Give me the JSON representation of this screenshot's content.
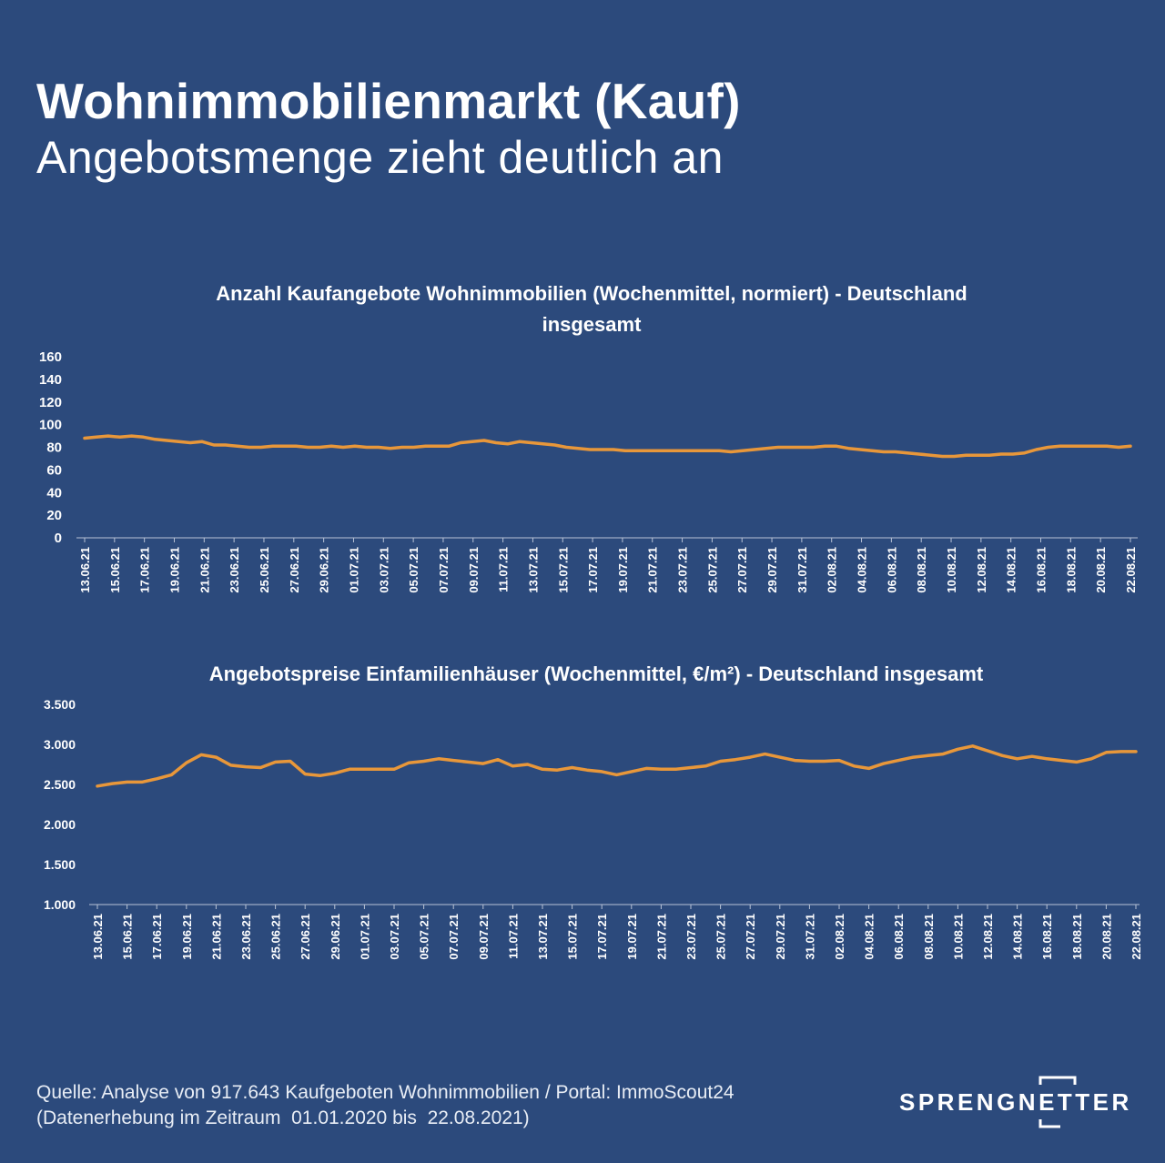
{
  "headline": "Wohnimmobilienmarkt (Kauf)",
  "subheadline": "Angebotsmenge zieht deutlich an",
  "line_color": "#e8973a",
  "background_color": "#2c4a7c",
  "footer": {
    "line1": "Quelle: Analyse von 917.643 Kaufgeboten Wohnimmobilien / Portal: ImmoScout24",
    "line2": "(Datenerhebung im Zeitraum  01.01.2020 bis  22.08.2021)"
  },
  "logo": {
    "text": "SPRENGNETTER"
  },
  "chart_data": [
    {
      "type": "line",
      "title": "Anzahl Kaufangebote Wohnimmobilien (Wochenmittel, normiert) - Deutschland insgesamt",
      "title_lines": [
        "Anzahl Kaufangebote Wohnimmobilien (Wochenmittel, normiert) - Deutschland",
        "insgesamt"
      ],
      "xlabel": "",
      "ylabel": "",
      "ylim": [
        0,
        160
      ],
      "yticks": [
        "0",
        "20",
        "40",
        "60",
        "80",
        "100",
        "120",
        "140",
        "160"
      ],
      "xtick_labels": [
        "13.06.21",
        "15.06.21",
        "17.06.21",
        "19.06.21",
        "21.06.21",
        "23.06.21",
        "25.06.21",
        "27.06.21",
        "29.06.21",
        "01.07.21",
        "03.07.21",
        "05.07.21",
        "07.07.21",
        "09.07.21",
        "11.07.21",
        "13.07.21",
        "15.07.21",
        "17.07.21",
        "19.07.21",
        "21.07.21",
        "23.07.21",
        "25.07.21",
        "27.07.21",
        "29.07.21",
        "31.07.21",
        "02.08.21",
        "04.08.21",
        "06.08.21",
        "08.08.21",
        "10.08.21",
        "12.08.21",
        "14.08.21",
        "16.08.21",
        "18.08.21",
        "20.08.21",
        "22.08.21"
      ],
      "grid": false,
      "legend": "none",
      "series": [
        {
          "values": [
            88,
            89,
            90,
            89,
            90,
            89,
            87,
            86,
            85,
            84,
            85,
            82,
            82,
            81,
            80,
            80,
            81,
            81,
            81,
            80,
            80,
            81,
            80,
            81,
            80,
            80,
            79,
            80,
            80,
            81,
            81,
            81,
            84,
            85,
            86,
            84,
            83,
            85,
            84,
            83,
            82,
            80,
            79,
            78,
            78,
            78,
            77,
            77,
            77,
            77,
            77,
            77,
            77,
            77,
            77,
            76,
            77,
            78,
            79,
            80,
            80,
            80,
            80,
            81,
            81,
            79,
            78,
            77,
            76,
            76,
            75,
            74,
            73,
            72,
            72,
            73,
            73,
            73,
            74,
            74,
            75,
            78,
            80,
            81,
            81,
            81,
            81,
            81,
            80,
            81
          ]
        }
      ]
    },
    {
      "type": "line",
      "title": "Angebotspreise Einfamilienhäuser (Wochenmittel, €/m²) - Deutschland insgesamt",
      "title_lines": [
        "Angebotspreise Einfamilienhäuser (Wochenmittel, €/m²) - Deutschland insgesamt"
      ],
      "xlabel": "",
      "ylabel": "",
      "ylim": [
        1000,
        3500
      ],
      "yticks": [
        "1.000",
        "1.500",
        "2.000",
        "2.500",
        "3.000",
        "3.500"
      ],
      "xtick_labels": [
        "13.06.21",
        "15.06.21",
        "17.06.21",
        "19.06.21",
        "21.06.21",
        "23.06.21",
        "25.06.21",
        "27.06.21",
        "29.06.21",
        "01.07.21",
        "03.07.21",
        "05.07.21",
        "07.07.21",
        "09.07.21",
        "11.07.21",
        "13.07.21",
        "15.07.21",
        "17.07.21",
        "19.07.21",
        "21.07.21",
        "23.07.21",
        "25.07.21",
        "27.07.21",
        "29.07.21",
        "31.07.21",
        "02.08.21",
        "04.08.21",
        "06.08.21",
        "08.08.21",
        "10.08.21",
        "12.08.21",
        "14.08.21",
        "16.08.21",
        "18.08.21",
        "20.08.21",
        "22.08.21"
      ],
      "grid": false,
      "legend": "none",
      "series": [
        {
          "values": [
            2480,
            2510,
            2530,
            2530,
            2570,
            2620,
            2770,
            2870,
            2840,
            2740,
            2720,
            2710,
            2780,
            2790,
            2630,
            2610,
            2640,
            2690,
            2690,
            2690,
            2690,
            2770,
            2790,
            2820,
            2800,
            2780,
            2760,
            2810,
            2730,
            2750,
            2690,
            2680,
            2710,
            2680,
            2660,
            2620,
            2660,
            2700,
            2690,
            2690,
            2710,
            2730,
            2790,
            2810,
            2840,
            2880,
            2840,
            2800,
            2790,
            2790,
            2800,
            2730,
            2700,
            2760,
            2800,
            2840,
            2860,
            2880,
            2940,
            2980,
            2920,
            2860,
            2820,
            2850,
            2820,
            2800,
            2780,
            2820,
            2900,
            2910,
            2910
          ]
        }
      ]
    }
  ]
}
